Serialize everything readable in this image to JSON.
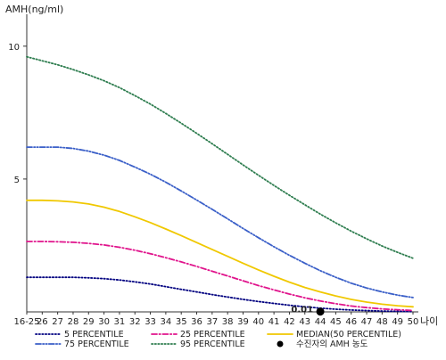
{
  "chart_data": {
    "type": "line",
    "ylabel": "AMH(ng/ml)",
    "xlabel": "나이",
    "categories": [
      "16-25",
      "26",
      "27",
      "28",
      "29",
      "30",
      "31",
      "32",
      "33",
      "34",
      "35",
      "36",
      "37",
      "38",
      "39",
      "40",
      "41",
      "42",
      "43",
      "44",
      "45",
      "46",
      "47",
      "48",
      "49",
      "50"
    ],
    "ylim": [
      0,
      11
    ],
    "yticks": [
      5,
      10
    ],
    "grid": false,
    "legend_position": "bottom",
    "series": [
      {
        "name": "5 PERCENTILE",
        "color": "#000080",
        "dash": "dotted",
        "values": [
          1.3,
          1.3,
          1.3,
          1.3,
          1.28,
          1.25,
          1.2,
          1.13,
          1.05,
          0.95,
          0.85,
          0.75,
          0.65,
          0.56,
          0.47,
          0.39,
          0.32,
          0.25,
          0.19,
          0.14,
          0.1,
          0.07,
          0.05,
          0.03,
          0.02,
          0.01
        ]
      },
      {
        "name": "25 PERCENTILE",
        "color": "#e0148c",
        "dash": "dashdot",
        "values": [
          2.65,
          2.65,
          2.64,
          2.62,
          2.58,
          2.52,
          2.43,
          2.32,
          2.19,
          2.04,
          1.88,
          1.71,
          1.53,
          1.35,
          1.17,
          0.99,
          0.83,
          0.67,
          0.53,
          0.41,
          0.31,
          0.22,
          0.16,
          0.11,
          0.08,
          0.05
        ]
      },
      {
        "name": "MEDIAN(50 PERCENTILE)",
        "color": "#f0c800",
        "dash": "solid",
        "values": [
          4.2,
          4.2,
          4.18,
          4.14,
          4.06,
          3.94,
          3.78,
          3.58,
          3.36,
          3.12,
          2.87,
          2.61,
          2.35,
          2.09,
          1.83,
          1.58,
          1.34,
          1.12,
          0.92,
          0.75,
          0.6,
          0.47,
          0.37,
          0.29,
          0.23,
          0.19
        ]
      },
      {
        "name": "75 PERCENTILE",
        "color": "#3a5fc8",
        "dash": "dashdotdot",
        "values": [
          6.2,
          6.2,
          6.2,
          6.15,
          6.05,
          5.9,
          5.7,
          5.45,
          5.18,
          4.88,
          4.55,
          4.21,
          3.86,
          3.5,
          3.14,
          2.79,
          2.45,
          2.13,
          1.83,
          1.55,
          1.3,
          1.08,
          0.9,
          0.75,
          0.63,
          0.54
        ]
      },
      {
        "name": "95 PERCENTILE",
        "color": "#2e7d4f",
        "dash": "dotted",
        "values": [
          9.6,
          9.45,
          9.3,
          9.12,
          8.92,
          8.7,
          8.44,
          8.14,
          7.82,
          7.47,
          7.1,
          6.72,
          6.33,
          5.93,
          5.53,
          5.14,
          4.76,
          4.39,
          4.03,
          3.68,
          3.35,
          3.04,
          2.75,
          2.48,
          2.24,
          2.02
        ]
      }
    ],
    "marker": {
      "name": "수진자의 AMH 농도",
      "x": "44",
      "y": 0.01,
      "label": "0.01",
      "color": "#000000"
    }
  }
}
